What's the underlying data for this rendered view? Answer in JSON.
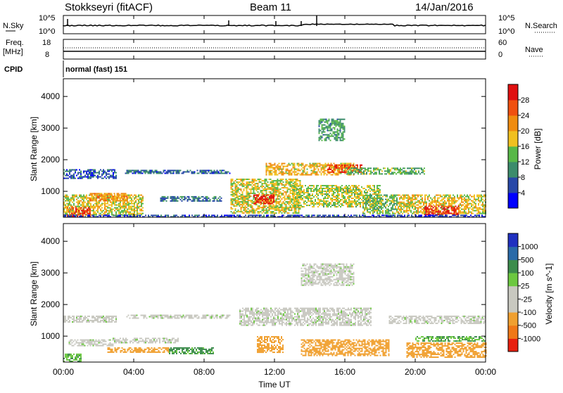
{
  "header": {
    "station": "Stokkseyri (fitACF)",
    "beam": "Beam 11",
    "date": "14/Jan/2016"
  },
  "noise_panel": {
    "left_label": "N.Sky",
    "right_label": "N.Search",
    "left_ticks": [
      "10^5",
      "10^0"
    ],
    "right_ticks": [
      "10^5",
      "10^0"
    ]
  },
  "freq_panel": {
    "left_label_1": "Freq.",
    "left_label_2": "[MHz]",
    "right_label": "Nave",
    "left_ticks": [
      "18",
      "8"
    ],
    "right_ticks": [
      "60",
      "0"
    ]
  },
  "cpid": {
    "label": "CPID",
    "mode": "normal (fast) 151"
  },
  "x_axis": {
    "ticks": [
      "00:00",
      "04:00",
      "08:00",
      "12:00",
      "16:00",
      "20:00",
      "00:00"
    ],
    "label": "Time UT"
  },
  "power_panel": {
    "ylabel": "Slant Range [km]",
    "yticks": [
      "4000",
      "3000",
      "2000",
      "1000"
    ],
    "colorbar_label": "Power [dB]",
    "colorbar_ticks": [
      "28",
      "24",
      "20",
      "16",
      "12",
      "8",
      "4"
    ]
  },
  "velocity_panel": {
    "ylabel": "Slant Range [km]",
    "yticks": [
      "4000",
      "3000",
      "2000",
      "1000"
    ],
    "colorbar_label": "Velocity [m s^-1]",
    "colorbar_ticks": [
      "1000",
      "500",
      "100",
      "25",
      "-25",
      "-100",
      "-500",
      "-1000"
    ]
  },
  "colors": {
    "power_scale": [
      "#0000ff",
      "#2848a8",
      "#3c8c6c",
      "#58b848",
      "#f0c020",
      "#f08c10",
      "#f05010",
      "#e01010"
    ],
    "velocity_scale": [
      "#2030c0",
      "#2a6aa8",
      "#3c8c4c",
      "#6cc840",
      "#c8c8c0",
      "#c8c8c0",
      "#f0a030",
      "#f07818",
      "#e82010"
    ]
  },
  "chart_data": [
    {
      "type": "heatmap",
      "title": "Power",
      "ylabel": "Slant Range [km]",
      "xlabel": "Time UT",
      "xlim": [
        "00:00",
        "24:00"
      ],
      "ylim": [
        180,
        4560
      ],
      "colorbar": "Power [dB]",
      "color_range": [
        0,
        30
      ],
      "regions": [
        {
          "t0": 0.0,
          "t1": 4.5,
          "r0": 250,
          "r1": 900,
          "v": 16
        },
        {
          "t0": 0.2,
          "t1": 1.5,
          "r0": 220,
          "r1": 500,
          "v": 26
        },
        {
          "t0": 1.5,
          "t1": 3.6,
          "r0": 700,
          "r1": 950,
          "v": 20
        },
        {
          "t0": 0.0,
          "t1": 3.0,
          "r0": 1400,
          "r1": 1700,
          "v": 6
        },
        {
          "t0": 3.5,
          "t1": 9.5,
          "r0": 1550,
          "r1": 1680,
          "v": 7
        },
        {
          "t0": 5.5,
          "t1": 9.0,
          "r0": 700,
          "r1": 850,
          "v": 8
        },
        {
          "t0": 9.5,
          "t1": 13.5,
          "r0": 300,
          "r1": 1400,
          "v": 16
        },
        {
          "t0": 10.8,
          "t1": 12.0,
          "r0": 600,
          "r1": 900,
          "v": 28
        },
        {
          "t0": 11.5,
          "t1": 16.5,
          "r0": 1500,
          "r1": 1900,
          "v": 18
        },
        {
          "t0": 15.0,
          "t1": 17.0,
          "r0": 1600,
          "r1": 1850,
          "v": 25
        },
        {
          "t0": 13.0,
          "t1": 18.0,
          "r0": 500,
          "r1": 1200,
          "v": 15
        },
        {
          "t0": 14.5,
          "t1": 16.0,
          "r0": 2600,
          "r1": 3300,
          "v": 11
        },
        {
          "t0": 16.0,
          "t1": 20.5,
          "r0": 1550,
          "r1": 1750,
          "v": 12
        },
        {
          "t0": 17.0,
          "t1": 19.0,
          "r0": 300,
          "r1": 900,
          "v": 13
        },
        {
          "t0": 19.0,
          "t1": 24.0,
          "r0": 300,
          "r1": 900,
          "v": 17
        },
        {
          "t0": 20.5,
          "t1": 22.5,
          "r0": 280,
          "r1": 550,
          "v": 28
        },
        {
          "t0": 0.0,
          "t1": 24.0,
          "r0": 180,
          "r1": 260,
          "v": 5
        }
      ]
    },
    {
      "type": "heatmap",
      "title": "Velocity",
      "ylabel": "Slant Range [km]",
      "xlabel": "Time UT",
      "xlim": [
        "00:00",
        "24:00"
      ],
      "ylim": [
        180,
        4560
      ],
      "colorbar": "Velocity [m s^-1]",
      "color_range": [
        -1000,
        1000
      ],
      "regions": [
        {
          "t0": 0.0,
          "t1": 1.0,
          "r0": 200,
          "r1": 450,
          "v": 90
        },
        {
          "t0": 0.3,
          "t1": 2.8,
          "r0": 700,
          "r1": 900,
          "v": 0
        },
        {
          "t0": 2.8,
          "t1": 6.5,
          "r0": 800,
          "r1": 950,
          "v": 0
        },
        {
          "t0": 0.0,
          "t1": 3.0,
          "r0": 1450,
          "r1": 1650,
          "v": 0
        },
        {
          "t0": 3.5,
          "t1": 9.5,
          "r0": 1550,
          "r1": 1680,
          "v": 0
        },
        {
          "t0": 2.5,
          "t1": 6.0,
          "r0": 500,
          "r1": 650,
          "v": -150
        },
        {
          "t0": 6.0,
          "t1": 8.5,
          "r0": 450,
          "r1": 650,
          "v": 120
        },
        {
          "t0": 10.0,
          "t1": 17.5,
          "r0": 1350,
          "r1": 1900,
          "v": 0
        },
        {
          "t0": 11.0,
          "t1": 12.5,
          "r0": 500,
          "r1": 1000,
          "v": -200
        },
        {
          "t0": 13.5,
          "t1": 18.5,
          "r0": 400,
          "r1": 900,
          "v": -400
        },
        {
          "t0": 13.5,
          "t1": 16.5,
          "r0": 2600,
          "r1": 3300,
          "v": 0
        },
        {
          "t0": 18.5,
          "t1": 24.0,
          "r0": 1400,
          "r1": 1650,
          "v": 0
        },
        {
          "t0": 19.5,
          "t1": 24.0,
          "r0": 350,
          "r1": 800,
          "v": -400
        },
        {
          "t0": 20.0,
          "t1": 24.0,
          "r0": 850,
          "r1": 1000,
          "v": 100
        }
      ]
    }
  ]
}
